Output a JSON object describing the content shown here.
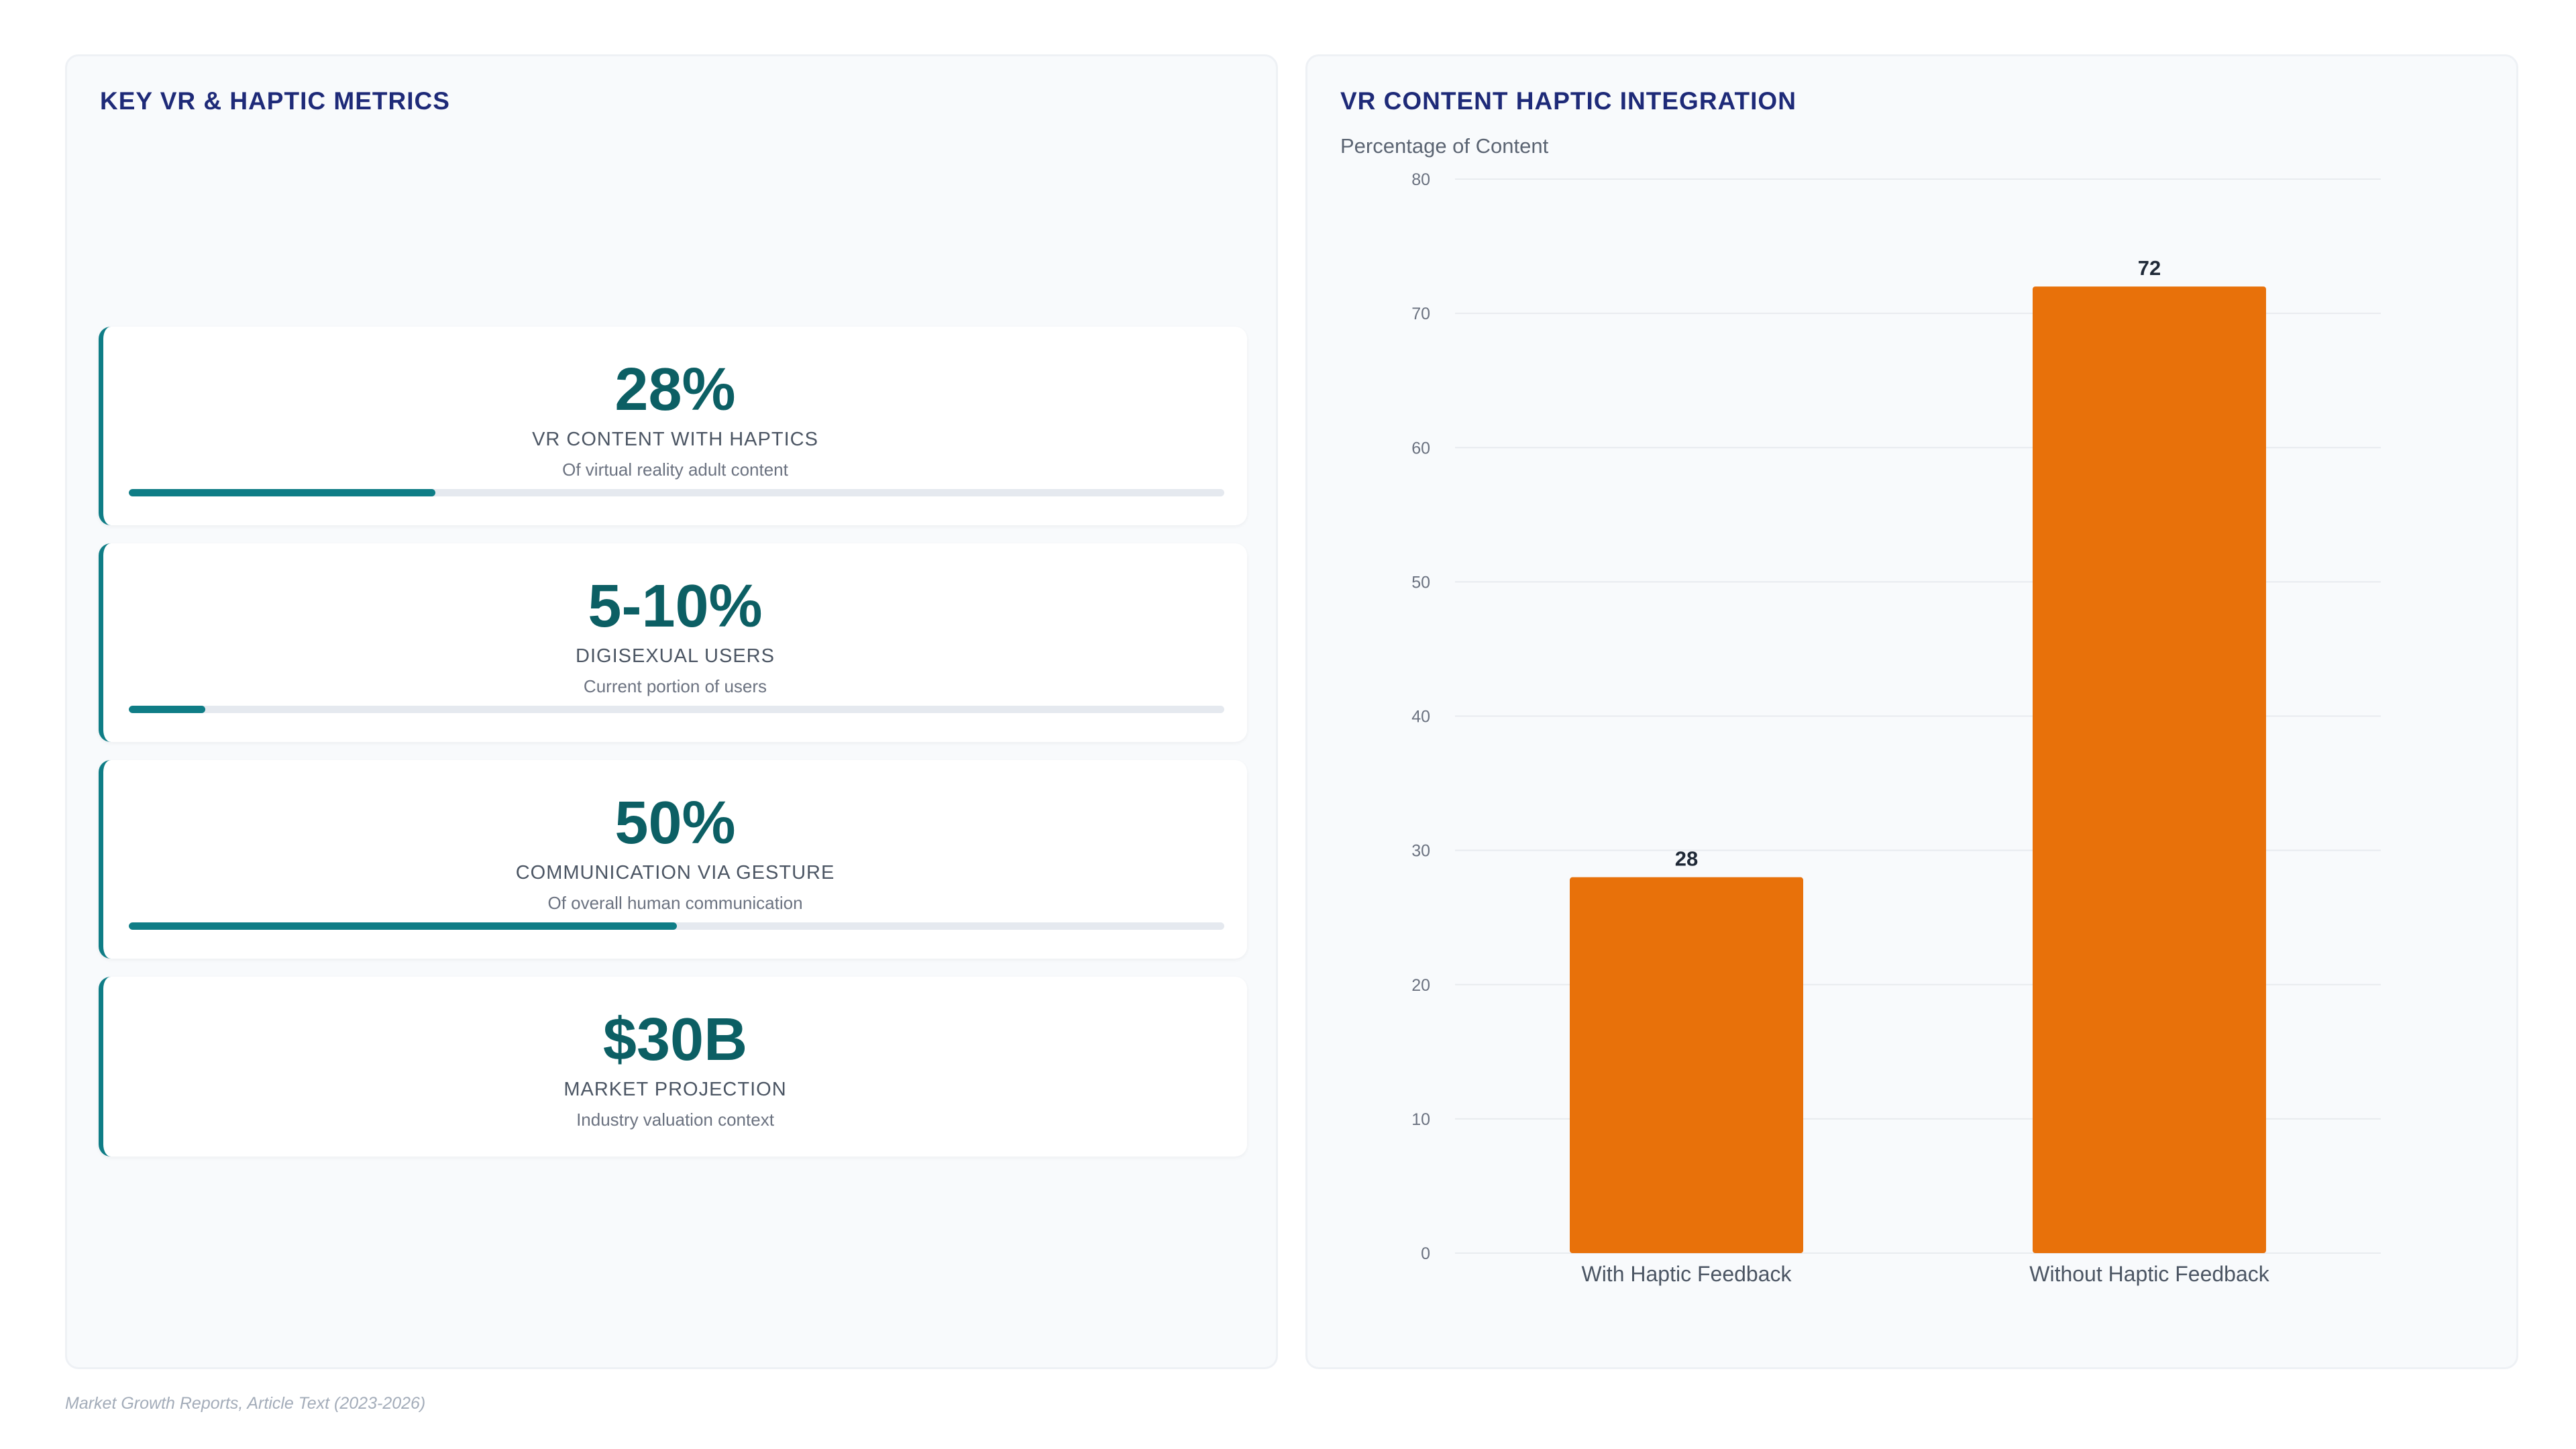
{
  "left_panel": {
    "title": "KEY VR & HAPTIC METRICS",
    "metrics": [
      {
        "value": "28%",
        "label": "VR CONTENT WITH HAPTICS",
        "subtitle": "Of virtual reality adult content",
        "progress": 0.28
      },
      {
        "value": "5-10%",
        "label": "DIGISEXUAL USERS",
        "subtitle": "Current portion of users",
        "progress": 0.07
      },
      {
        "value": "50%",
        "label": "COMMUNICATION VIA GESTURE",
        "subtitle": "Of overall human communication",
        "progress": 0.5
      },
      {
        "value": "$30B",
        "label": "MARKET PROJECTION",
        "subtitle": "Industry valuation context",
        "progress": null
      }
    ]
  },
  "right_panel": {
    "title": "VR CONTENT HAPTIC INTEGRATION"
  },
  "chart_data": {
    "type": "bar",
    "title": "VR CONTENT HAPTIC INTEGRATION",
    "ylabel": "Percentage of Content",
    "xlabel": "",
    "categories": [
      "With Haptic Feedback",
      "Without Haptic Feedback"
    ],
    "values": [
      28,
      72
    ],
    "data_labels": [
      "28",
      "72"
    ],
    "ylim": [
      0,
      80
    ],
    "yticks": [
      0,
      10,
      20,
      30,
      40,
      50,
      60,
      70,
      80
    ],
    "grid": true,
    "legend": "none",
    "bar_color": "#e8710a"
  },
  "colors": {
    "accent": "#0f7d86",
    "value_text": "#0c5f64",
    "title_text": "#1e2a78",
    "bar": "#e8710a"
  },
  "footer": {
    "source": "Market Growth Reports, Article Text (2023-2026)"
  }
}
